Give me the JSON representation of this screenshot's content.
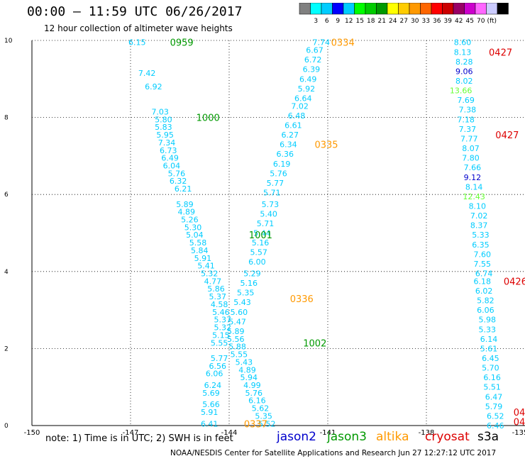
{
  "header": {
    "title": "00:00 – 11:59 UTC 06/26/2017",
    "subtitle": "12 hour collection of altimeter wave heights"
  },
  "footer": {
    "note": "note: 1) Time is in UTC; 2) SWH is in feet",
    "credit": "NOAA/NESDIS Center for Satellite Applications and Research   Jun 27 12:27:12 UTC 2017",
    "missions": [
      {
        "name": "jason2",
        "color": "#0000cc"
      },
      {
        "name": "jason3",
        "color": "#009900"
      },
      {
        "name": "altika",
        "color": "#ff9900"
      },
      {
        "name": "cryosat",
        "color": "#dd0000"
      },
      {
        "name": "s3a",
        "color": "#000000"
      }
    ]
  },
  "colorbar": {
    "unit": "(ft)",
    "colors": [
      "#808080",
      "#00ffff",
      "#00ccff",
      "#0000ff",
      "#00ccff",
      "#00ff00",
      "#00cc00",
      "#009900",
      "#ffff00",
      "#ffcc00",
      "#ff9900",
      "#ff6600",
      "#ff0000",
      "#cc0000",
      "#990066",
      "#cc00cc",
      "#ff66ff",
      "#ccccff",
      "#000000"
    ],
    "labels": [
      "3",
      "6",
      "9",
      "12",
      "15",
      "18",
      "21",
      "24",
      "27",
      "30",
      "33",
      "36",
      "39",
      "42",
      "45",
      "70"
    ]
  },
  "chart_data": {
    "type": "scatter",
    "title": "",
    "xlabel": "",
    "ylabel": "",
    "xlim": [
      -150,
      -135
    ],
    "ylim": [
      0,
      10
    ],
    "xticks": [
      "-150",
      "-147",
      "-144",
      "-141",
      "-138",
      "-135"
    ],
    "yticks": [
      "0",
      "2",
      "4",
      "6",
      "8",
      "10"
    ],
    "grid": true,
    "series": [
      {
        "name": "track-a",
        "color": "#00ccff",
        "points": [
          {
            "x": -146.8,
            "y": 9.95,
            "v": "6.15"
          },
          {
            "x": -146.5,
            "y": 9.15,
            "v": "7.42"
          },
          {
            "x": -146.3,
            "y": 8.8,
            "v": "6.92"
          },
          {
            "x": -146.1,
            "y": 8.15,
            "v": "7.03"
          },
          {
            "x": -146.0,
            "y": 7.95,
            "v": "5.80"
          },
          {
            "x": -146.0,
            "y": 7.75,
            "v": "5.83"
          },
          {
            "x": -145.95,
            "y": 7.55,
            "v": "5.95"
          },
          {
            "x": -145.9,
            "y": 7.35,
            "v": "7.34"
          },
          {
            "x": -145.85,
            "y": 7.15,
            "v": "6.73"
          },
          {
            "x": -145.8,
            "y": 6.95,
            "v": "6.49"
          },
          {
            "x": -145.75,
            "y": 6.75,
            "v": "6.04"
          },
          {
            "x": -145.6,
            "y": 6.55,
            "v": "5.76"
          },
          {
            "x": -145.55,
            "y": 6.35,
            "v": "6.32"
          },
          {
            "x": -145.4,
            "y": 6.15,
            "v": "6.21"
          },
          {
            "x": -145.35,
            "y": 5.75,
            "v": "5.89"
          },
          {
            "x": -145.3,
            "y": 5.55,
            "v": "4.89"
          },
          {
            "x": -145.2,
            "y": 5.35,
            "v": "5.26"
          },
          {
            "x": -145.1,
            "y": 5.15,
            "v": "5.30"
          },
          {
            "x": -145.05,
            "y": 4.95,
            "v": "5.04"
          },
          {
            "x": -144.95,
            "y": 4.75,
            "v": "5.58"
          },
          {
            "x": -144.9,
            "y": 4.55,
            "v": "5.84"
          },
          {
            "x": -144.8,
            "y": 4.35,
            "v": "5.91"
          },
          {
            "x": -144.7,
            "y": 4.15,
            "v": "5.41"
          },
          {
            "x": -144.6,
            "y": 3.95,
            "v": "5.32"
          },
          {
            "x": -144.5,
            "y": 3.75,
            "v": "4.77"
          },
          {
            "x": -144.4,
            "y": 3.55,
            "v": "5.86"
          },
          {
            "x": -144.35,
            "y": 3.35,
            "v": "5.37"
          },
          {
            "x": -144.3,
            "y": 3.15,
            "v": "4.58"
          },
          {
            "x": -144.25,
            "y": 2.95,
            "v": "5.46"
          },
          {
            "x": -144.2,
            "y": 2.75,
            "v": "5.37"
          },
          {
            "x": -144.2,
            "y": 2.55,
            "v": "5.32"
          },
          {
            "x": -144.25,
            "y": 2.35,
            "v": "5.15"
          },
          {
            "x": -144.3,
            "y": 2.15,
            "v": "5.55"
          },
          {
            "x": -144.3,
            "y": 1.75,
            "v": "5.77"
          },
          {
            "x": -144.35,
            "y": 1.55,
            "v": "6.56"
          },
          {
            "x": -144.45,
            "y": 1.35,
            "v": "6.06"
          },
          {
            "x": -144.5,
            "y": 1.05,
            "v": "6.24"
          },
          {
            "x": -144.55,
            "y": 0.85,
            "v": "5.69"
          },
          {
            "x": -144.55,
            "y": 0.55,
            "v": "5.66"
          },
          {
            "x": -144.6,
            "y": 0.35,
            "v": "5.91"
          },
          {
            "x": -144.6,
            "y": 0.05,
            "v": "6.41"
          }
        ]
      },
      {
        "name": "track-b",
        "color": "#00ccff",
        "points": [
          {
            "x": -141.2,
            "y": 9.95,
            "v": "7.74"
          },
          {
            "x": -141.4,
            "y": 9.75,
            "v": "6.67"
          },
          {
            "x": -141.45,
            "y": 9.5,
            "v": "6.72"
          },
          {
            "x": -141.5,
            "y": 9.25,
            "v": "6.39"
          },
          {
            "x": -141.6,
            "y": 9.0,
            "v": "6.49"
          },
          {
            "x": -141.65,
            "y": 8.75,
            "v": "5.92"
          },
          {
            "x": -141.75,
            "y": 8.5,
            "v": "6.64"
          },
          {
            "x": -141.85,
            "y": 8.3,
            "v": "7.02"
          },
          {
            "x": -141.95,
            "y": 8.05,
            "v": "6.48"
          },
          {
            "x": -142.05,
            "y": 7.8,
            "v": "6.61"
          },
          {
            "x": -142.15,
            "y": 7.55,
            "v": "6.27"
          },
          {
            "x": -142.2,
            "y": 7.3,
            "v": "6.34"
          },
          {
            "x": -142.3,
            "y": 7.05,
            "v": "6.36"
          },
          {
            "x": -142.4,
            "y": 6.8,
            "v": "6.19"
          },
          {
            "x": -142.5,
            "y": 6.55,
            "v": "5.76"
          },
          {
            "x": -142.6,
            "y": 6.3,
            "v": "5.77"
          },
          {
            "x": -142.7,
            "y": 6.05,
            "v": "5.71"
          },
          {
            "x": -142.75,
            "y": 5.75,
            "v": "5.73"
          },
          {
            "x": -142.8,
            "y": 5.5,
            "v": "5.40"
          },
          {
            "x": -142.9,
            "y": 5.25,
            "v": "5.71"
          },
          {
            "x": -143.0,
            "y": 5.0,
            "v": "5.44"
          },
          {
            "x": -143.05,
            "y": 4.75,
            "v": "5.16"
          },
          {
            "x": -143.1,
            "y": 4.5,
            "v": "5.57"
          },
          {
            "x": -143.15,
            "y": 4.25,
            "v": "6.00"
          },
          {
            "x": -143.3,
            "y": 3.95,
            "v": "5.29"
          },
          {
            "x": -143.4,
            "y": 3.7,
            "v": "5.16"
          },
          {
            "x": -143.5,
            "y": 3.45,
            "v": "5.35"
          },
          {
            "x": -143.6,
            "y": 3.2,
            "v": "5.43"
          },
          {
            "x": -143.7,
            "y": 2.95,
            "v": "5.60"
          },
          {
            "x": -143.75,
            "y": 2.7,
            "v": "5.47"
          },
          {
            "x": -143.8,
            "y": 2.45,
            "v": "5.89"
          },
          {
            "x": -143.8,
            "y": 2.25,
            "v": "5.56"
          },
          {
            "x": -143.75,
            "y": 2.05,
            "v": "5.88"
          },
          {
            "x": -143.7,
            "y": 1.85,
            "v": "5.55"
          },
          {
            "x": -143.55,
            "y": 1.65,
            "v": "5.43"
          },
          {
            "x": -143.45,
            "y": 1.45,
            "v": "4.89"
          },
          {
            "x": -143.4,
            "y": 1.25,
            "v": "5.94"
          },
          {
            "x": -143.3,
            "y": 1.05,
            "v": "4.99"
          },
          {
            "x": -143.25,
            "y": 0.85,
            "v": "5.76"
          },
          {
            "x": -143.15,
            "y": 0.65,
            "v": "6.16"
          },
          {
            "x": -143.05,
            "y": 0.45,
            "v": "5.62"
          },
          {
            "x": -142.95,
            "y": 0.25,
            "v": "5.35"
          },
          {
            "x": -142.85,
            "y": 0.05,
            "v": "5.52"
          }
        ]
      },
      {
        "name": "track-c",
        "color": "#00ccff",
        "points": [
          {
            "x": -136.9,
            "y": 9.95,
            "v": "8.60"
          },
          {
            "x": -136.9,
            "y": 9.7,
            "v": "8.13"
          },
          {
            "x": -136.85,
            "y": 9.45,
            "v": "8.28"
          },
          {
            "x": -136.85,
            "y": 9.2,
            "v": "9.06"
          },
          {
            "x": -136.85,
            "y": 8.95,
            "v": "8.02"
          },
          {
            "x": -136.95,
            "y": 8.7,
            "v": "13.66"
          },
          {
            "x": -136.8,
            "y": 8.45,
            "v": "7.69"
          },
          {
            "x": -136.75,
            "y": 8.2,
            "v": "7.38"
          },
          {
            "x": -136.8,
            "y": 7.95,
            "v": "7.18"
          },
          {
            "x": -136.75,
            "y": 7.7,
            "v": "7.37"
          },
          {
            "x": -136.7,
            "y": 7.45,
            "v": "7.77"
          },
          {
            "x": -136.65,
            "y": 7.2,
            "v": "8.07"
          },
          {
            "x": -136.65,
            "y": 6.95,
            "v": "7.80"
          },
          {
            "x": -136.6,
            "y": 6.7,
            "v": "7.66"
          },
          {
            "x": -136.6,
            "y": 6.45,
            "v": "9.12"
          },
          {
            "x": -136.55,
            "y": 6.2,
            "v": "8.14"
          },
          {
            "x": -136.55,
            "y": 5.95,
            "v": "12.43"
          },
          {
            "x": -136.45,
            "y": 5.7,
            "v": "8.10"
          },
          {
            "x": -136.4,
            "y": 5.45,
            "v": "7.02"
          },
          {
            "x": -136.4,
            "y": 5.2,
            "v": "8.37"
          },
          {
            "x": -136.35,
            "y": 4.95,
            "v": "5.33"
          },
          {
            "x": -136.35,
            "y": 4.7,
            "v": "6.35"
          },
          {
            "x": -136.3,
            "y": 4.45,
            "v": "7.60"
          },
          {
            "x": -136.3,
            "y": 4.2,
            "v": "7.55"
          },
          {
            "x": -136.25,
            "y": 3.95,
            "v": "6.74"
          },
          {
            "x": -136.3,
            "y": 3.75,
            "v": "6.18"
          },
          {
            "x": -136.25,
            "y": 3.5,
            "v": "6.02"
          },
          {
            "x": -136.2,
            "y": 3.25,
            "v": "5.82"
          },
          {
            "x": -136.2,
            "y": 3.0,
            "v": "6.06"
          },
          {
            "x": -136.15,
            "y": 2.75,
            "v": "5.98"
          },
          {
            "x": -136.15,
            "y": 2.5,
            "v": "5.33"
          },
          {
            "x": -136.1,
            "y": 2.25,
            "v": "6.14"
          },
          {
            "x": -136.1,
            "y": 2.0,
            "v": "5.61"
          },
          {
            "x": -136.05,
            "y": 1.75,
            "v": "6.45"
          },
          {
            "x": -136.05,
            "y": 1.5,
            "v": "5.70"
          },
          {
            "x": -136.0,
            "y": 1.25,
            "v": "6.16"
          },
          {
            "x": -136.0,
            "y": 1.0,
            "v": "5.51"
          },
          {
            "x": -135.95,
            "y": 0.75,
            "v": "6.47"
          },
          {
            "x": -135.95,
            "y": 0.5,
            "v": "5.79"
          },
          {
            "x": -135.9,
            "y": 0.25,
            "v": "6.52"
          },
          {
            "x": -135.9,
            "y": 0.0,
            "v": "6.46"
          }
        ]
      }
    ],
    "time_labels": [
      {
        "x": -145.8,
        "y": 9.95,
        "text": "0959",
        "color": "#009900"
      },
      {
        "x": -140.9,
        "y": 9.95,
        "text": "0334",
        "color": "#ff9900"
      },
      {
        "x": -136.1,
        "y": 9.7,
        "text": "0427",
        "color": "#dd0000"
      },
      {
        "x": -145.0,
        "y": 8.0,
        "text": "1000",
        "color": "#009900"
      },
      {
        "x": -135.9,
        "y": 7.55,
        "text": "0427",
        "color": "#dd0000"
      },
      {
        "x": -141.4,
        "y": 7.3,
        "text": "0335",
        "color": "#ff9900"
      },
      {
        "x": -143.4,
        "y": 4.95,
        "text": "1001",
        "color": "#009900"
      },
      {
        "x": -135.65,
        "y": 3.75,
        "text": "0426",
        "color": "#dd0000"
      },
      {
        "x": -142.15,
        "y": 3.3,
        "text": "0336",
        "color": "#ff9900"
      },
      {
        "x": -141.75,
        "y": 2.15,
        "text": "1002",
        "color": "#009900"
      },
      {
        "x": -143.55,
        "y": 0.05,
        "text": "0337",
        "color": "#ff9900"
      },
      {
        "x": -135.35,
        "y": 0.35,
        "text": "042",
        "color": "#dd0000"
      },
      {
        "x": -135.35,
        "y": 0.1,
        "text": "042",
        "color": "#dd0000"
      }
    ]
  }
}
